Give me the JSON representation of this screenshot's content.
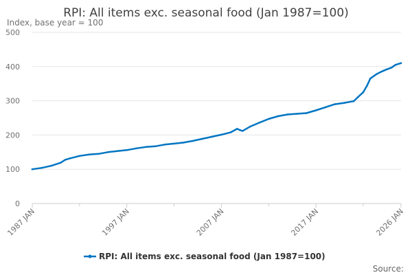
{
  "chart_data": {
    "type": "line",
    "title": "RPI: All items exc. seasonal food (Jan 1987=100)",
    "ylabel": "Index, base year = 100",
    "xlabel": "",
    "ylim": [
      0,
      500
    ],
    "yticks": [
      "0",
      "100",
      "200",
      "300",
      "400",
      "500"
    ],
    "xticks": [
      "1987 JAN",
      "1997 JAN",
      "2007 JAN",
      "2017 JAN",
      "2026 JAN"
    ],
    "grid": true,
    "legend_position": "bottom",
    "color": "#0075c2",
    "series": [
      {
        "name": "RPI: All items exc. seasonal food (Jan 1987=100)",
        "x": [
          "1987-01",
          "1988-01",
          "1989-01",
          "1990-01",
          "1990-07",
          "1991-01",
          "1992-01",
          "1993-01",
          "1994-01",
          "1995-01",
          "1996-01",
          "1997-01",
          "1998-01",
          "1999-01",
          "2000-01",
          "2001-01",
          "2002-01",
          "2003-01",
          "2004-01",
          "2005-01",
          "2006-01",
          "2007-01",
          "2008-01",
          "2008-09",
          "2009-01",
          "2009-04",
          "2010-01",
          "2011-01",
          "2012-01",
          "2013-01",
          "2014-01",
          "2015-01",
          "2016-01",
          "2017-01",
          "2018-01",
          "2019-01",
          "2020-01",
          "2021-01",
          "2021-06",
          "2022-01",
          "2022-06",
          "2022-10",
          "2023-06",
          "2024-01",
          "2024-06",
          "2025-01",
          "2025-06",
          "2026-01"
        ],
        "values": [
          100,
          104,
          110,
          119,
          128,
          132,
          139,
          143,
          145,
          150,
          153,
          156,
          161,
          165,
          167,
          172,
          175,
          178,
          183,
          189,
          195,
          201,
          208,
          218,
          214,
          212,
          224,
          236,
          247,
          255,
          260,
          262,
          264,
          272,
          281,
          290,
          294,
          299,
          310,
          325,
          345,
          365,
          378,
          386,
          391,
          397,
          405,
          410
        ]
      }
    ]
  },
  "legend": {
    "label": "RPI: All items exc. seasonal food (Jan 1987=100)"
  },
  "source": {
    "label": "Source:"
  }
}
